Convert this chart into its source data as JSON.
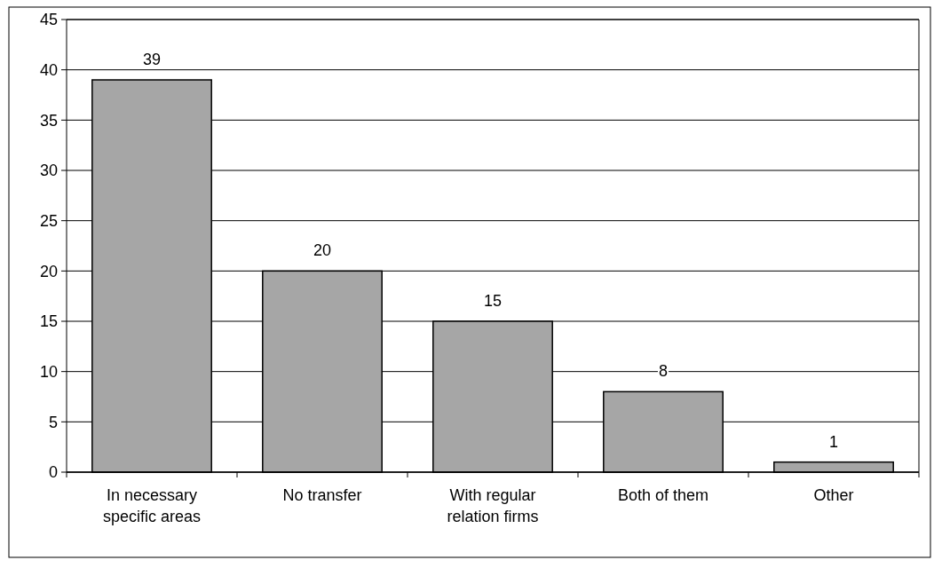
{
  "chart_data": {
    "type": "bar",
    "categories": [
      "In necessary specific areas",
      "No transfer",
      "With regular relation firms",
      "Both of them",
      "Other"
    ],
    "values": [
      39,
      20,
      15,
      8,
      1
    ],
    "color": "#a6a6a6",
    "ylim": [
      0,
      45
    ],
    "yticks": [
      0,
      5,
      10,
      15,
      20,
      25,
      30,
      35,
      40,
      45
    ],
    "grid": "y",
    "data_labels": true
  }
}
